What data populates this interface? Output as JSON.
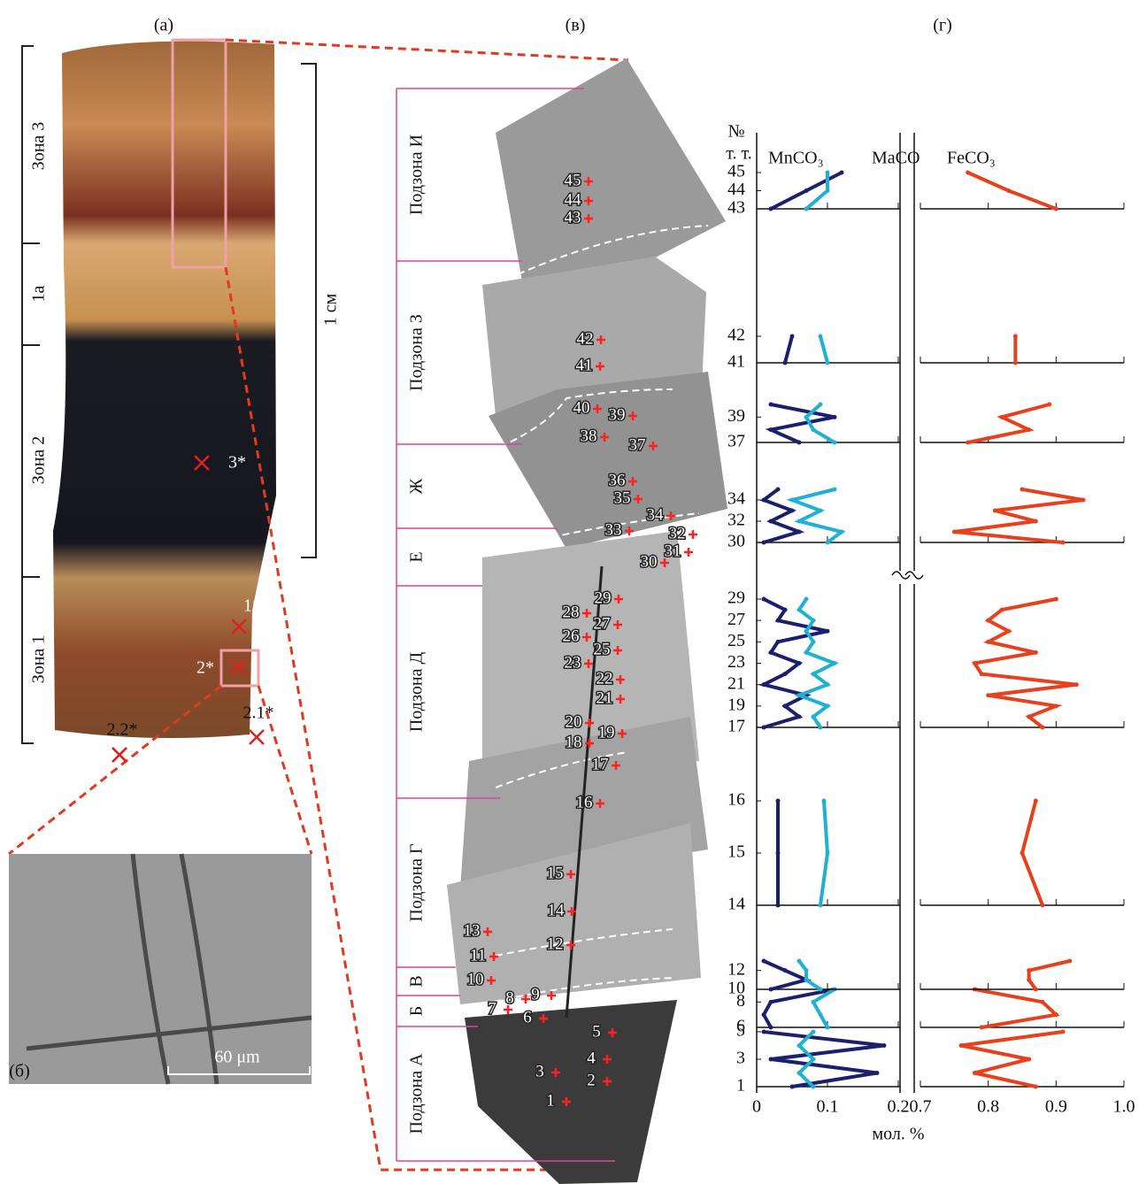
{
  "panel_labels": {
    "a": "(а)",
    "b": "(б)",
    "v": "(в)",
    "g": "(г)"
  },
  "zones": [
    "Зона 3",
    "1а",
    "Зона 2",
    "Зона 1"
  ],
  "scale_label": "1 см",
  "sample_marks": [
    "3*",
    "1*",
    "2*"
  ],
  "inset": {
    "marks": [
      "2.2*",
      "2.1*"
    ],
    "scale": "60 μm"
  },
  "subzones": [
    "Подзона И",
    "Подзона З",
    "Ж",
    "Е",
    "Подзона Д",
    "Подзона Г",
    "В",
    "Б",
    "Подзона А"
  ],
  "sem_points": [
    "1",
    "2",
    "3",
    "4",
    "5",
    "6",
    "7",
    "8",
    "9",
    "10",
    "11",
    "12",
    "13",
    "14",
    "15",
    "16",
    "17",
    "18",
    "19",
    "20",
    "21",
    "22",
    "23",
    "25",
    "26",
    "27",
    "28",
    "29",
    "30",
    "31",
    "32",
    "33",
    "34",
    "35",
    "36",
    "37",
    "38",
    "39",
    "40",
    "41",
    "42",
    "43",
    "44",
    "45"
  ],
  "chart_data": {
    "type": "profile",
    "ylabel": [
      "№",
      "т. т."
    ],
    "xlabel": "мол. %",
    "xlim": [
      0,
      0.2
    ],
    "xticks": [
      0,
      0.1,
      0.2
    ],
    "x2lim": [
      0.7,
      1.0
    ],
    "x2ticks": [
      0.7,
      0.8,
      0.9,
      {
        "value": 1.0,
        "label": "1.0"
      }
    ],
    "y": [
      1,
      2,
      3,
      4,
      5,
      6,
      7,
      8,
      9,
      10,
      11,
      12,
      13,
      14,
      15,
      16,
      17,
      18,
      19,
      20,
      21,
      22,
      23,
      24,
      25,
      26,
      27,
      28,
      29,
      30,
      31,
      32,
      33,
      34,
      35,
      36,
      37,
      38,
      39,
      40,
      41,
      42,
      43,
      44,
      45
    ],
    "panels": [
      {
        "ylim": [
          1,
          5
        ],
        "yticks": [
          1,
          3,
          5
        ]
      },
      {
        "ylim": [
          6,
          9
        ],
        "yticks": [
          6,
          8
        ]
      },
      {
        "ylim": [
          10,
          13
        ],
        "yticks": [
          10,
          12
        ]
      },
      {
        "ylim": [
          14,
          16
        ],
        "yticks": [
          14,
          15,
          16
        ]
      },
      {
        "ylim": [
          17,
          29
        ],
        "yticks": [
          17,
          19,
          21,
          23,
          25,
          27,
          29
        ]
      },
      {
        "ylim": [
          30,
          35
        ],
        "yticks": [
          30,
          32,
          34
        ]
      },
      {
        "ylim": [
          37,
          40
        ],
        "yticks": [
          37,
          39
        ]
      },
      {
        "ylim": [
          41,
          42
        ],
        "yticks": [
          41,
          42
        ]
      },
      {
        "ylim": [
          43,
          45
        ],
        "yticks": [
          43,
          44,
          45
        ]
      }
    ],
    "series": [
      {
        "name": "MnCO₃",
        "color": "#1a1f6e",
        "axis": "x",
        "values": [
          0.05,
          0.17,
          0.02,
          0.18,
          0.01,
          0.02,
          0.01,
          0.02,
          0.11,
          0.02,
          0.07,
          0.04,
          0.01,
          0.03,
          0.03,
          0.03,
          0.01,
          0.06,
          0.04,
          0.07,
          0.01,
          0.04,
          0.06,
          0.02,
          0.03,
          0.1,
          0.03,
          0.04,
          0.01,
          0.01,
          0.06,
          0.02,
          0.05,
          0.01,
          0.03,
          null,
          0.06,
          0.02,
          0.11,
          0.02,
          0.04,
          0.05,
          0.02,
          0.07,
          0.12
        ]
      },
      {
        "name": "MaCO",
        "color": "#1fb0d6",
        "axis": "x",
        "values": [
          0.08,
          0.06,
          0.08,
          0.06,
          0.08,
          0.1,
          0.09,
          0.08,
          0.11,
          0.09,
          0.07,
          0.07,
          0.06,
          0.09,
          0.1,
          0.095,
          0.09,
          0.08,
          0.1,
          0.06,
          0.1,
          0.08,
          0.11,
          0.07,
          0.08,
          0.07,
          0.08,
          0.06,
          0.07,
          0.1,
          0.12,
          0.06,
          0.09,
          0.05,
          0.11,
          null,
          0.11,
          0.08,
          0.07,
          0.09,
          0.1,
          0.09,
          0.07,
          0.1,
          0.1
        ]
      },
      {
        "name": "FeCO₃",
        "color": "#e8401c",
        "axis": "x2",
        "values": [
          0.87,
          0.78,
          0.86,
          0.76,
          0.91,
          0.79,
          0.9,
          0.88,
          0.78,
          0.87,
          0.86,
          0.86,
          0.92,
          0.88,
          0.85,
          0.87,
          0.88,
          0.86,
          0.9,
          0.8,
          0.93,
          0.79,
          0.78,
          0.87,
          0.8,
          0.83,
          0.8,
          0.82,
          0.9,
          0.91,
          0.75,
          0.87,
          0.81,
          0.94,
          0.85,
          null,
          0.77,
          0.86,
          0.82,
          0.89,
          0.84,
          0.84,
          0.9,
          0.83,
          0.77
        ]
      }
    ]
  }
}
